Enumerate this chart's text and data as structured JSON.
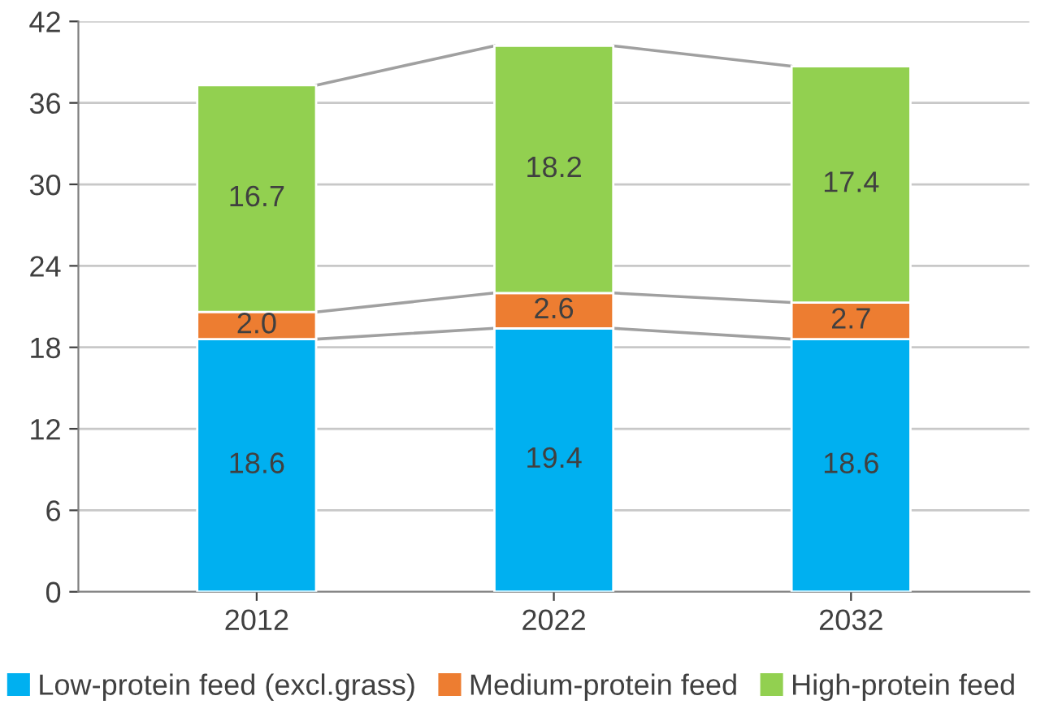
{
  "chart_data": {
    "type": "bar",
    "stacked": true,
    "categories": [
      "2012",
      "2022",
      "2032"
    ],
    "series": [
      {
        "name": "Low-protein feed (excl.grass)",
        "color": "#00b0f0",
        "values": [
          18.6,
          19.4,
          18.6
        ],
        "value_labels": [
          "18.6",
          "19.4",
          "18.6"
        ]
      },
      {
        "name": "Medium-protein feed",
        "color": "#ed7d31",
        "values": [
          2.0,
          2.6,
          2.7
        ],
        "value_labels": [
          "2.0",
          "2.6",
          "2.7"
        ]
      },
      {
        "name": "High-protein feed",
        "color": "#92d050",
        "values": [
          16.7,
          18.2,
          17.4
        ],
        "value_labels": [
          "16.7",
          "18.2",
          "17.4"
        ]
      }
    ],
    "ylim": [
      0,
      42
    ],
    "yticks": [
      0,
      6,
      12,
      18,
      24,
      30,
      36,
      42
    ],
    "grid": "y",
    "legend": "bottom"
  }
}
